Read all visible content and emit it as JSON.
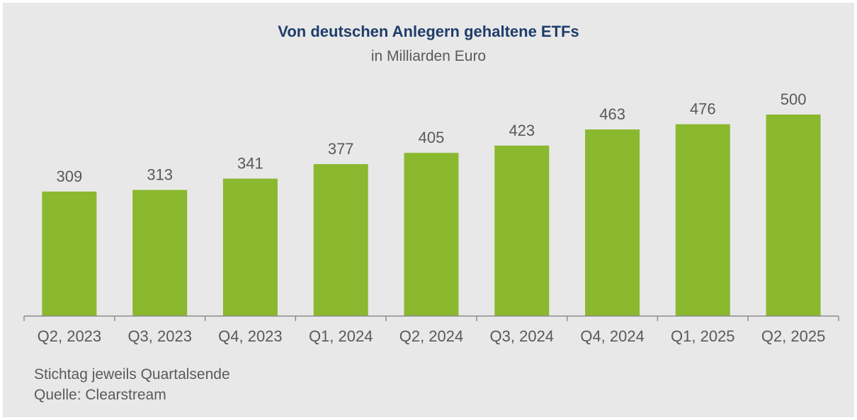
{
  "chart_data": {
    "type": "bar",
    "title": "Von deutschen Anlegern gehaltene ETFs",
    "subtitle": "in Milliarden Euro",
    "categories": [
      "Q2, 2023",
      "Q3, 2023",
      "Q4, 2023",
      "Q1, 2024",
      "Q2, 2024",
      "Q3, 2024",
      "Q4, 2024",
      "Q1, 2025",
      "Q2, 2025"
    ],
    "values": [
      309,
      313,
      341,
      377,
      405,
      423,
      463,
      476,
      500
    ],
    "xlabel": "",
    "ylabel": "",
    "ylim": [
      0,
      500
    ],
    "grid": false,
    "bar_color": "#8ab82f",
    "axis_color": "#8c8c8c",
    "label_color": "#595959"
  },
  "footnotes": {
    "line1": "Stichtag jeweils Quartalsende",
    "line2": "Quelle: Clearstream"
  }
}
